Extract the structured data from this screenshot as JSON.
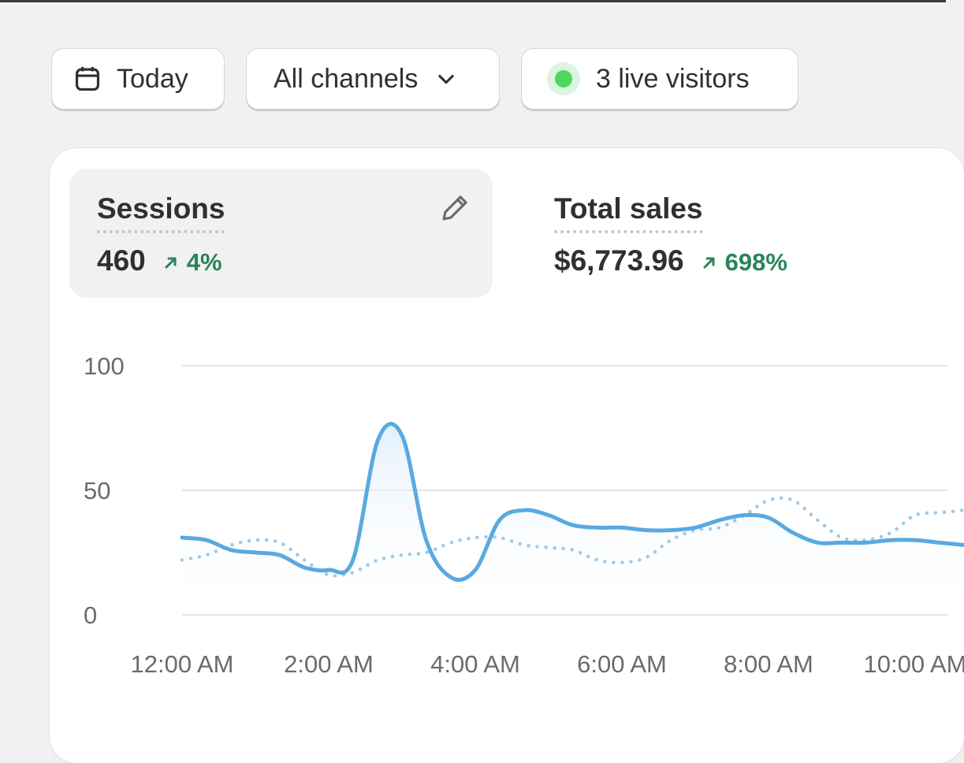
{
  "filters": {
    "date_label": "Today",
    "channel_label": "All channels",
    "live_label": "3 live visitors"
  },
  "icons": {
    "date": "calendar-icon",
    "channel": "chevron-down-icon",
    "live": "live-status-dot",
    "edit": "pencil-icon",
    "trend": "arrow-up-right-icon"
  },
  "colors": {
    "live_dot": "#4fd85d",
    "positive": "#29845a",
    "series_current": "#5aa9e0",
    "series_previous": "#9ccbec"
  },
  "metrics": [
    {
      "label": "Sessions",
      "value": "460",
      "change": "4%"
    },
    {
      "label": "Total sales",
      "value": "$6,773.96",
      "change": "698%"
    }
  ],
  "chart_data": {
    "type": "line",
    "title": "",
    "xlabel": "",
    "ylabel": "",
    "ylim": [
      0,
      100
    ],
    "yticks": [
      "100",
      "50",
      "0"
    ],
    "xticks": [
      "12:00 AM",
      "2:00 AM",
      "4:00 AM",
      "6:00 AM",
      "8:00 AM",
      "10:00 AM"
    ],
    "x_hours": [
      0,
      0.33,
      0.67,
      1,
      1.33,
      1.67,
      2,
      2.33,
      2.67,
      3,
      3.33,
      3.67,
      4,
      4.33,
      4.67,
      5,
      5.33,
      5.67,
      6,
      6.33,
      6.67,
      7,
      7.33,
      7.67,
      8,
      8.33,
      8.67,
      9,
      9.33,
      9.67,
      10,
      10.33,
      10.67
    ],
    "series": [
      {
        "name": "current",
        "style": "solid",
        "values": [
          31,
          30,
          26,
          25,
          24,
          19,
          18,
          22,
          70,
          72,
          30,
          15,
          18,
          38,
          42,
          40,
          36,
          35,
          35,
          34,
          34,
          35,
          38,
          40,
          39,
          33,
          29,
          29,
          29,
          30,
          30,
          29,
          28
        ]
      },
      {
        "name": "previous",
        "style": "dotted",
        "values": [
          22,
          24,
          28,
          30,
          29,
          22,
          16,
          17,
          22,
          24,
          25,
          29,
          31,
          31,
          28,
          27,
          26,
          22,
          21,
          23,
          30,
          34,
          35,
          40,
          46,
          46,
          38,
          31,
          30,
          33,
          40,
          41,
          42
        ]
      }
    ]
  }
}
